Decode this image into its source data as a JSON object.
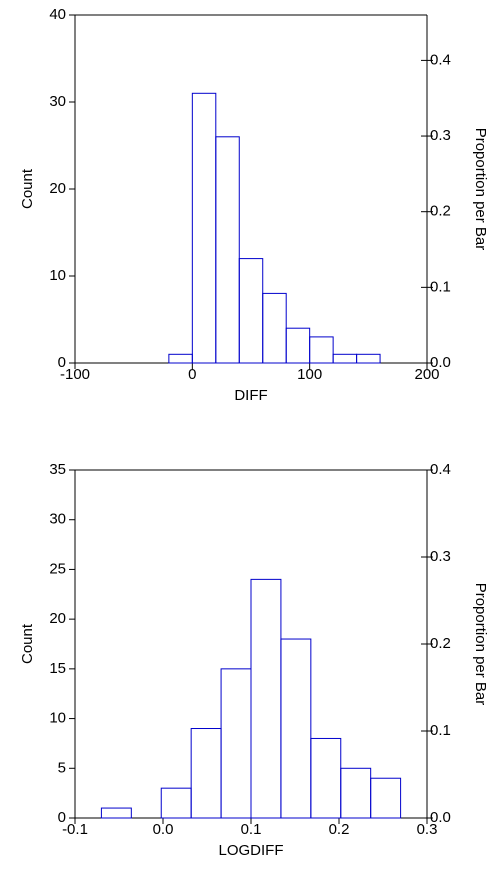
{
  "chart_data": [
    {
      "type": "histogram",
      "x_label": "DIFF",
      "y_label": "Count",
      "y2_label": "Proportion per Bar",
      "bins": [
        -100,
        -80,
        -60,
        -40,
        -20,
        0,
        20,
        40,
        60,
        80,
        100,
        120,
        140,
        160,
        180,
        200
      ],
      "counts": [
        0,
        0,
        0,
        0,
        1,
        31,
        26,
        12,
        8,
        4,
        3,
        1,
        1,
        0,
        0
      ],
      "color": "#0000cc",
      "xlim": [
        -100,
        200
      ],
      "xticks": [
        -100,
        0,
        100,
        200
      ],
      "ylim": [
        0,
        40
      ],
      "yticks": [
        0,
        10,
        20,
        30,
        40
      ],
      "y2lim": [
        0,
        0.46
      ],
      "y2ticks": [
        {
          "value": 0,
          "label": "0.0"
        },
        0.1,
        0.2,
        0.3,
        0.4
      ]
    },
    {
      "type": "histogram",
      "x_label": "LOGDIFF",
      "y_label": "Count",
      "y2_label": "Proportion per Bar",
      "bins": [
        -0.07,
        -0.036,
        -0.002,
        0.032,
        0.066,
        0.1,
        0.134,
        0.168,
        0.202,
        0.236,
        0.27
      ],
      "counts": [
        1,
        0,
        3,
        9,
        15,
        24,
        18,
        8,
        5,
        4
      ],
      "color": "#0000cc",
      "xlim": [
        -0.1,
        0.3
      ],
      "xticks": [
        -0.1,
        {
          "value": 0,
          "label": "0.0"
        },
        0.1,
        0.2,
        0.3
      ],
      "ylim": [
        0,
        35
      ],
      "yticks": [
        0,
        5,
        10,
        15,
        20,
        25,
        30,
        35
      ],
      "y2lim": [
        0,
        0.4
      ],
      "y2ticks": [
        {
          "value": 0,
          "label": "0.0"
        },
        0.1,
        0.2,
        0.3,
        0.4
      ]
    }
  ]
}
